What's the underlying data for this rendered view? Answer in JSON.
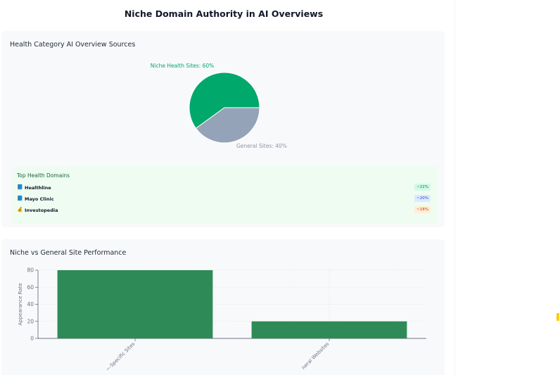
{
  "page": {
    "title": "Niche Domain Authority in AI Overviews"
  },
  "colors": {
    "niche": "#00a86b",
    "general": "#94a3b8",
    "bar": "#2e8b57"
  },
  "pie_card": {
    "title": "Health Category AI Overview Sources"
  },
  "domains_panel": {
    "title": "Top Health Domains",
    "items": [
      {
        "icon": "book-icon",
        "glyph": "📘",
        "name": "Healthline",
        "share": "~22%",
        "badge_bg": "#d1fae5",
        "badge_fg": "#047857"
      },
      {
        "icon": "book-icon",
        "glyph": "📘",
        "name": "Mayo Clinic",
        "share": "~20%",
        "badge_bg": "#dbeafe",
        "badge_fg": "#1d4ed8"
      },
      {
        "icon": "money-bag-icon",
        "glyph": "💰",
        "name": "Investopedia",
        "share": "~18%",
        "badge_bg": "#ffedd5",
        "badge_fg": "#c2410c"
      }
    ]
  },
  "bar_card": {
    "title": "Niche vs General Site Performance"
  },
  "chart_data": [
    {
      "type": "pie",
      "labels": [
        "Niche Health Sites",
        "General Sites"
      ],
      "values": [
        60,
        40
      ],
      "slice_labels": [
        "Niche Health Sites: 60%",
        "General Sites: 40%"
      ],
      "title": "Health Category AI Overview Sources"
    },
    {
      "type": "bar",
      "categories": [
        "Topic-Specific Sites",
        "General Websites"
      ],
      "tick_labels": [
        "~-Specific Sites",
        "neral Websites"
      ],
      "values": [
        80,
        20
      ],
      "title": "Niche vs General Site Performance",
      "xlabel": "",
      "ylabel": "Appearance Rate",
      "ylim": [
        0,
        80
      ],
      "yticks": [
        0,
        20,
        40,
        60,
        80
      ],
      "grid": true
    }
  ]
}
